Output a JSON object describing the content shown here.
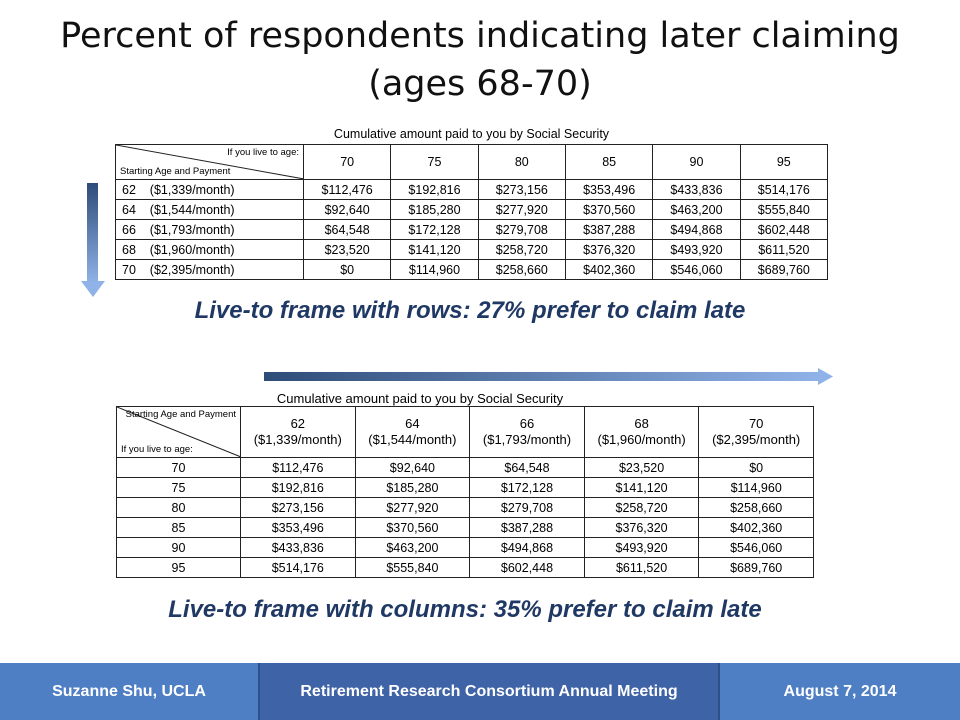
{
  "title": {
    "line1": "Percent of respondents indicating later claiming",
    "line2": "(ages 68-70)"
  },
  "table1": {
    "heading": "Cumulative amount paid to you by Social Security",
    "corner_top": "If you live to age:",
    "corner_bottom": "Starting Age and Payment",
    "columns": [
      "70",
      "75",
      "80",
      "85",
      "90",
      "95"
    ],
    "rows": [
      {
        "label": "62    ($1,339/month)",
        "values": [
          "$112,476",
          "$192,816",
          "$273,156",
          "$353,496",
          "$433,836",
          "$514,176"
        ]
      },
      {
        "label": "64    ($1,544/month)",
        "values": [
          "$92,640",
          "$185,280",
          "$277,920",
          "$370,560",
          "$463,200",
          "$555,840"
        ]
      },
      {
        "label": "66    ($1,793/month)",
        "values": [
          "$64,548",
          "$172,128",
          "$279,708",
          "$387,288",
          "$494,868",
          "$602,448"
        ]
      },
      {
        "label": "68    ($1,960/month)",
        "values": [
          "$23,520",
          "$141,120",
          "$258,720",
          "$376,320",
          "$493,920",
          "$611,520"
        ]
      },
      {
        "label": "70    ($2,395/month)",
        "values": [
          "$0",
          "$114,960",
          "$258,660",
          "$402,360",
          "$546,060",
          "$689,760"
        ]
      }
    ]
  },
  "caption1": "Live-to frame with rows: 27% prefer to claim late",
  "table2": {
    "heading": "Cumulative amount paid to you by Social Security",
    "corner_top": "Starting Age and Payment",
    "corner_bottom": "If you live to age:",
    "columns": [
      {
        "age": "62",
        "payment": "($1,339/month)"
      },
      {
        "age": "64",
        "payment": "($1,544/month)"
      },
      {
        "age": "66",
        "payment": "($1,793/month)"
      },
      {
        "age": "68",
        "payment": "($1,960/month)"
      },
      {
        "age": "70",
        "payment": "($2,395/month)"
      }
    ],
    "rows": [
      {
        "label": "70",
        "values": [
          "$112,476",
          "$92,640",
          "$64,548",
          "$23,520",
          "$0"
        ]
      },
      {
        "label": "75",
        "values": [
          "$192,816",
          "$185,280",
          "$172,128",
          "$141,120",
          "$114,960"
        ]
      },
      {
        "label": "80",
        "values": [
          "$273,156",
          "$277,920",
          "$279,708",
          "$258,720",
          "$258,660"
        ]
      },
      {
        "label": "85",
        "values": [
          "$353,496",
          "$370,560",
          "$387,288",
          "$376,320",
          "$402,360"
        ]
      },
      {
        "label": "90",
        "values": [
          "$433,836",
          "$463,200",
          "$494,868",
          "$493,920",
          "$546,060"
        ]
      },
      {
        "label": "95",
        "values": [
          "$514,176",
          "$555,840",
          "$602,448",
          "$611,520",
          "$689,760"
        ]
      }
    ]
  },
  "caption2": "Live-to frame with columns: 35% prefer to claim late",
  "footer": {
    "left": "Suzanne Shu, UCLA",
    "middle": "Retirement Research Consortium Annual Meeting",
    "right": "August 7, 2014"
  },
  "colors": {
    "caption": "#1f3864",
    "footer_bg": "#4e7ec3",
    "footer_mid": "#3f63a7",
    "arrow_dark": "#2e4c78",
    "arrow_light": "#8fb2e8"
  }
}
